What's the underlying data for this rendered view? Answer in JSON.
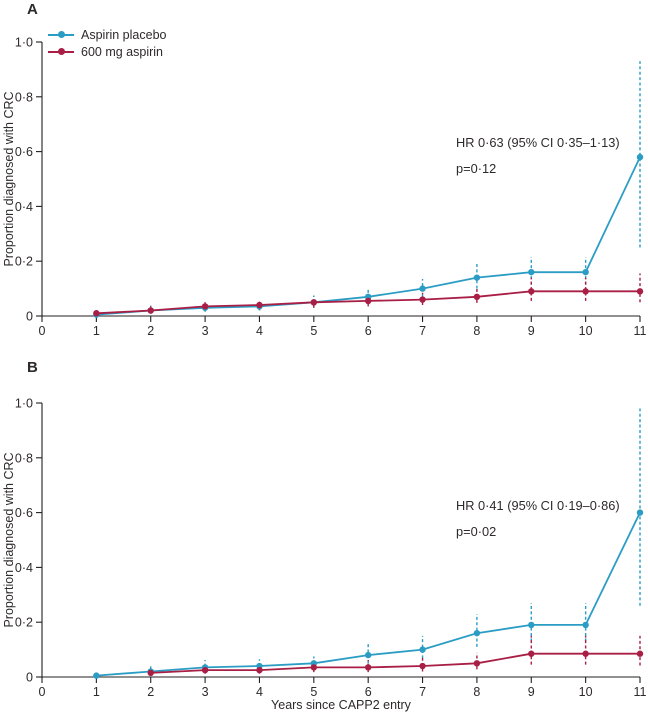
{
  "figure": {
    "axis_color": "#231f20",
    "text_color": "#2e2a2b",
    "panel_a_label": "A",
    "panel_b_label": "B"
  },
  "legend": {
    "items": [
      {
        "label": "Aspirin placebo",
        "color": "#2b9dc4"
      },
      {
        "label": "600 mg aspirin",
        "color": "#a91e45"
      }
    ]
  },
  "chart_data": [
    {
      "type": "line",
      "panel_label": "A",
      "ylabel": "Proportion diagnosed with CRC",
      "xlabel": "",
      "xlim": [
        0,
        11
      ],
      "ylim": [
        0,
        1.0
      ],
      "grid": false,
      "legend_position": "top-left-inside",
      "error_bar_style": "dashed 95% CI",
      "x": [
        1,
        2,
        3,
        4,
        5,
        6,
        7,
        8,
        9,
        10,
        11
      ],
      "x_ticks": [
        {
          "value": 0,
          "label": "0"
        },
        {
          "value": 1,
          "label": "1"
        },
        {
          "value": 2,
          "label": "2"
        },
        {
          "value": 3,
          "label": "3"
        },
        {
          "value": 4,
          "label": "4"
        },
        {
          "value": 5,
          "label": "5"
        },
        {
          "value": 6,
          "label": "6"
        },
        {
          "value": 7,
          "label": "7"
        },
        {
          "value": 8,
          "label": "8"
        },
        {
          "value": 9,
          "label": "9"
        },
        {
          "value": 10,
          "label": "10"
        },
        {
          "value": 11,
          "label": "11"
        }
      ],
      "y_ticks": [
        {
          "value": 0,
          "label": "0"
        },
        {
          "value": 0.2,
          "label": "0·2"
        },
        {
          "value": 0.4,
          "label": "0·4"
        },
        {
          "value": 0.6,
          "label": "0·6"
        },
        {
          "value": 0.8,
          "label": "0·8"
        },
        {
          "value": 1.0,
          "label": "1·0"
        }
      ],
      "series": [
        {
          "name": "Aspirin placebo",
          "color": "#2b9dc4",
          "values": [
            0.005,
            0.02,
            0.03,
            0.035,
            0.05,
            0.07,
            0.1,
            0.14,
            0.16,
            0.16,
            0.58
          ],
          "ci_lower": [
            0.0,
            0.01,
            0.015,
            0.02,
            0.03,
            0.045,
            0.07,
            0.1,
            0.115,
            0.115,
            0.25
          ],
          "ci_upper": [
            0.012,
            0.038,
            0.05,
            0.055,
            0.075,
            0.1,
            0.135,
            0.19,
            0.215,
            0.215,
            0.93
          ]
        },
        {
          "name": "600 mg aspirin",
          "color": "#a91e45",
          "values": [
            0.01,
            0.02,
            0.035,
            0.04,
            0.05,
            0.055,
            0.06,
            0.07,
            0.09,
            0.09,
            0.09
          ],
          "ci_lower": [
            0.002,
            0.008,
            0.02,
            0.022,
            0.03,
            0.035,
            0.04,
            0.048,
            0.055,
            0.055,
            0.05
          ],
          "ci_upper": [
            0.022,
            0.035,
            0.055,
            0.06,
            0.07,
            0.078,
            0.085,
            0.1,
            0.14,
            0.14,
            0.155
          ]
        }
      ],
      "annotation": {
        "line1": "HR 0·63 (95% CI 0·35–1·13)",
        "line2": "p=0·12"
      }
    },
    {
      "type": "line",
      "panel_label": "B",
      "ylabel": "Proportion diagnosed with CRC",
      "xlabel": "Years since CAPP2 entry",
      "xlim": [
        0,
        11
      ],
      "ylim": [
        0,
        1.0
      ],
      "grid": false,
      "legend_position": "none",
      "error_bar_style": "dashed 95% CI",
      "x": [
        1,
        2,
        3,
        4,
        5,
        6,
        7,
        8,
        9,
        10,
        11
      ],
      "x_ticks": [
        {
          "value": 0,
          "label": "0"
        },
        {
          "value": 1,
          "label": "1"
        },
        {
          "value": 2,
          "label": "2"
        },
        {
          "value": 3,
          "label": "3"
        },
        {
          "value": 4,
          "label": "4"
        },
        {
          "value": 5,
          "label": "5"
        },
        {
          "value": 6,
          "label": "6"
        },
        {
          "value": 7,
          "label": "7"
        },
        {
          "value": 8,
          "label": "8"
        },
        {
          "value": 9,
          "label": "9"
        },
        {
          "value": 10,
          "label": "10"
        },
        {
          "value": 11,
          "label": "11"
        }
      ],
      "y_ticks": [
        {
          "value": 0,
          "label": "0"
        },
        {
          "value": 0.2,
          "label": "0·2"
        },
        {
          "value": 0.4,
          "label": "0·4"
        },
        {
          "value": 0.6,
          "label": "0·6"
        },
        {
          "value": 0.8,
          "label": "0·8"
        },
        {
          "value": 1.0,
          "label": "1·0"
        }
      ],
      "series": [
        {
          "name": "Aspirin placebo",
          "color": "#2b9dc4",
          "values": [
            0.005,
            0.02,
            0.035,
            0.04,
            0.05,
            0.08,
            0.1,
            0.16,
            0.19,
            0.19,
            0.6
          ],
          "ci_lower": [
            0.0,
            0.008,
            0.018,
            0.02,
            0.028,
            0.05,
            0.068,
            0.11,
            0.13,
            0.13,
            0.26
          ],
          "ci_upper": [
            0.013,
            0.042,
            0.062,
            0.065,
            0.075,
            0.12,
            0.15,
            0.23,
            0.27,
            0.27,
            0.98
          ]
        },
        {
          "name": "600 mg aspirin",
          "color": "#a91e45",
          "values": [
            null,
            0.015,
            0.025,
            0.025,
            0.035,
            0.035,
            0.04,
            0.05,
            0.085,
            0.085,
            0.085
          ],
          "ci_lower": [
            null,
            0.005,
            0.012,
            0.012,
            0.018,
            0.018,
            0.02,
            0.028,
            0.045,
            0.045,
            0.042
          ],
          "ci_upper": [
            null,
            0.032,
            0.048,
            0.048,
            0.06,
            0.062,
            0.07,
            0.088,
            0.15,
            0.15,
            0.15
          ]
        }
      ],
      "annotation": {
        "line1": "HR 0·41 (95% CI 0·19–0·86)",
        "line2": "p=0·02"
      }
    }
  ]
}
